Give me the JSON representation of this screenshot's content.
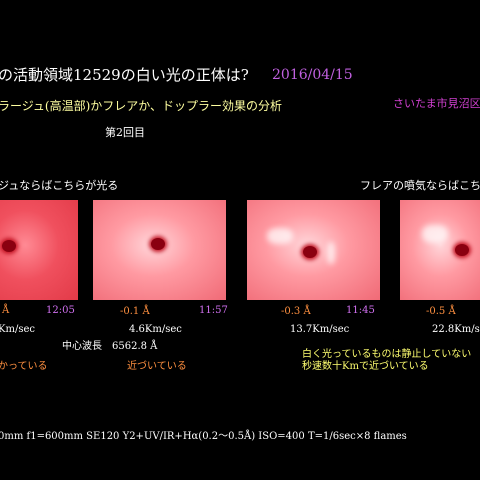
{
  "header": {
    "title": "の活動領域12529の白い光の正体は?",
    "date": "2016/04/15",
    "subtitle": "ラージュ(高温部)かフレアか、ドップラー効果の分析",
    "location": "さいたま市見沼区春",
    "session": "第2回目"
  },
  "captions": [
    "ジュならばこちらが光る",
    "フレアの噴気ならばこちらか"
  ],
  "panels": [
    {
      "offset": "Å",
      "time": "12:05",
      "speed": "Km/sec"
    },
    {
      "offset": "-0.1 Å",
      "time": "11:57",
      "speed": "4.6Km/sec"
    },
    {
      "offset": "-0.3 Å",
      "time": "11:45",
      "speed": "13.7Km/sec"
    },
    {
      "offset": "-0.5 Å",
      "speed": "22.8Km/sec"
    }
  ],
  "notes": {
    "center_wavelength": "中心波長　6562.8 Å",
    "left": "かっている",
    "middle": "近づいている",
    "right": [
      "白く光っているものは静止していない",
      "秒速数十Kmで近づいている"
    ]
  },
  "footer": {
    "equipment": "0mm  f1=600mm  SE120  Y2+UV/IR+Hα(0.2～0.5Å)  ISO=400  T=1/6sec×8 flames"
  }
}
